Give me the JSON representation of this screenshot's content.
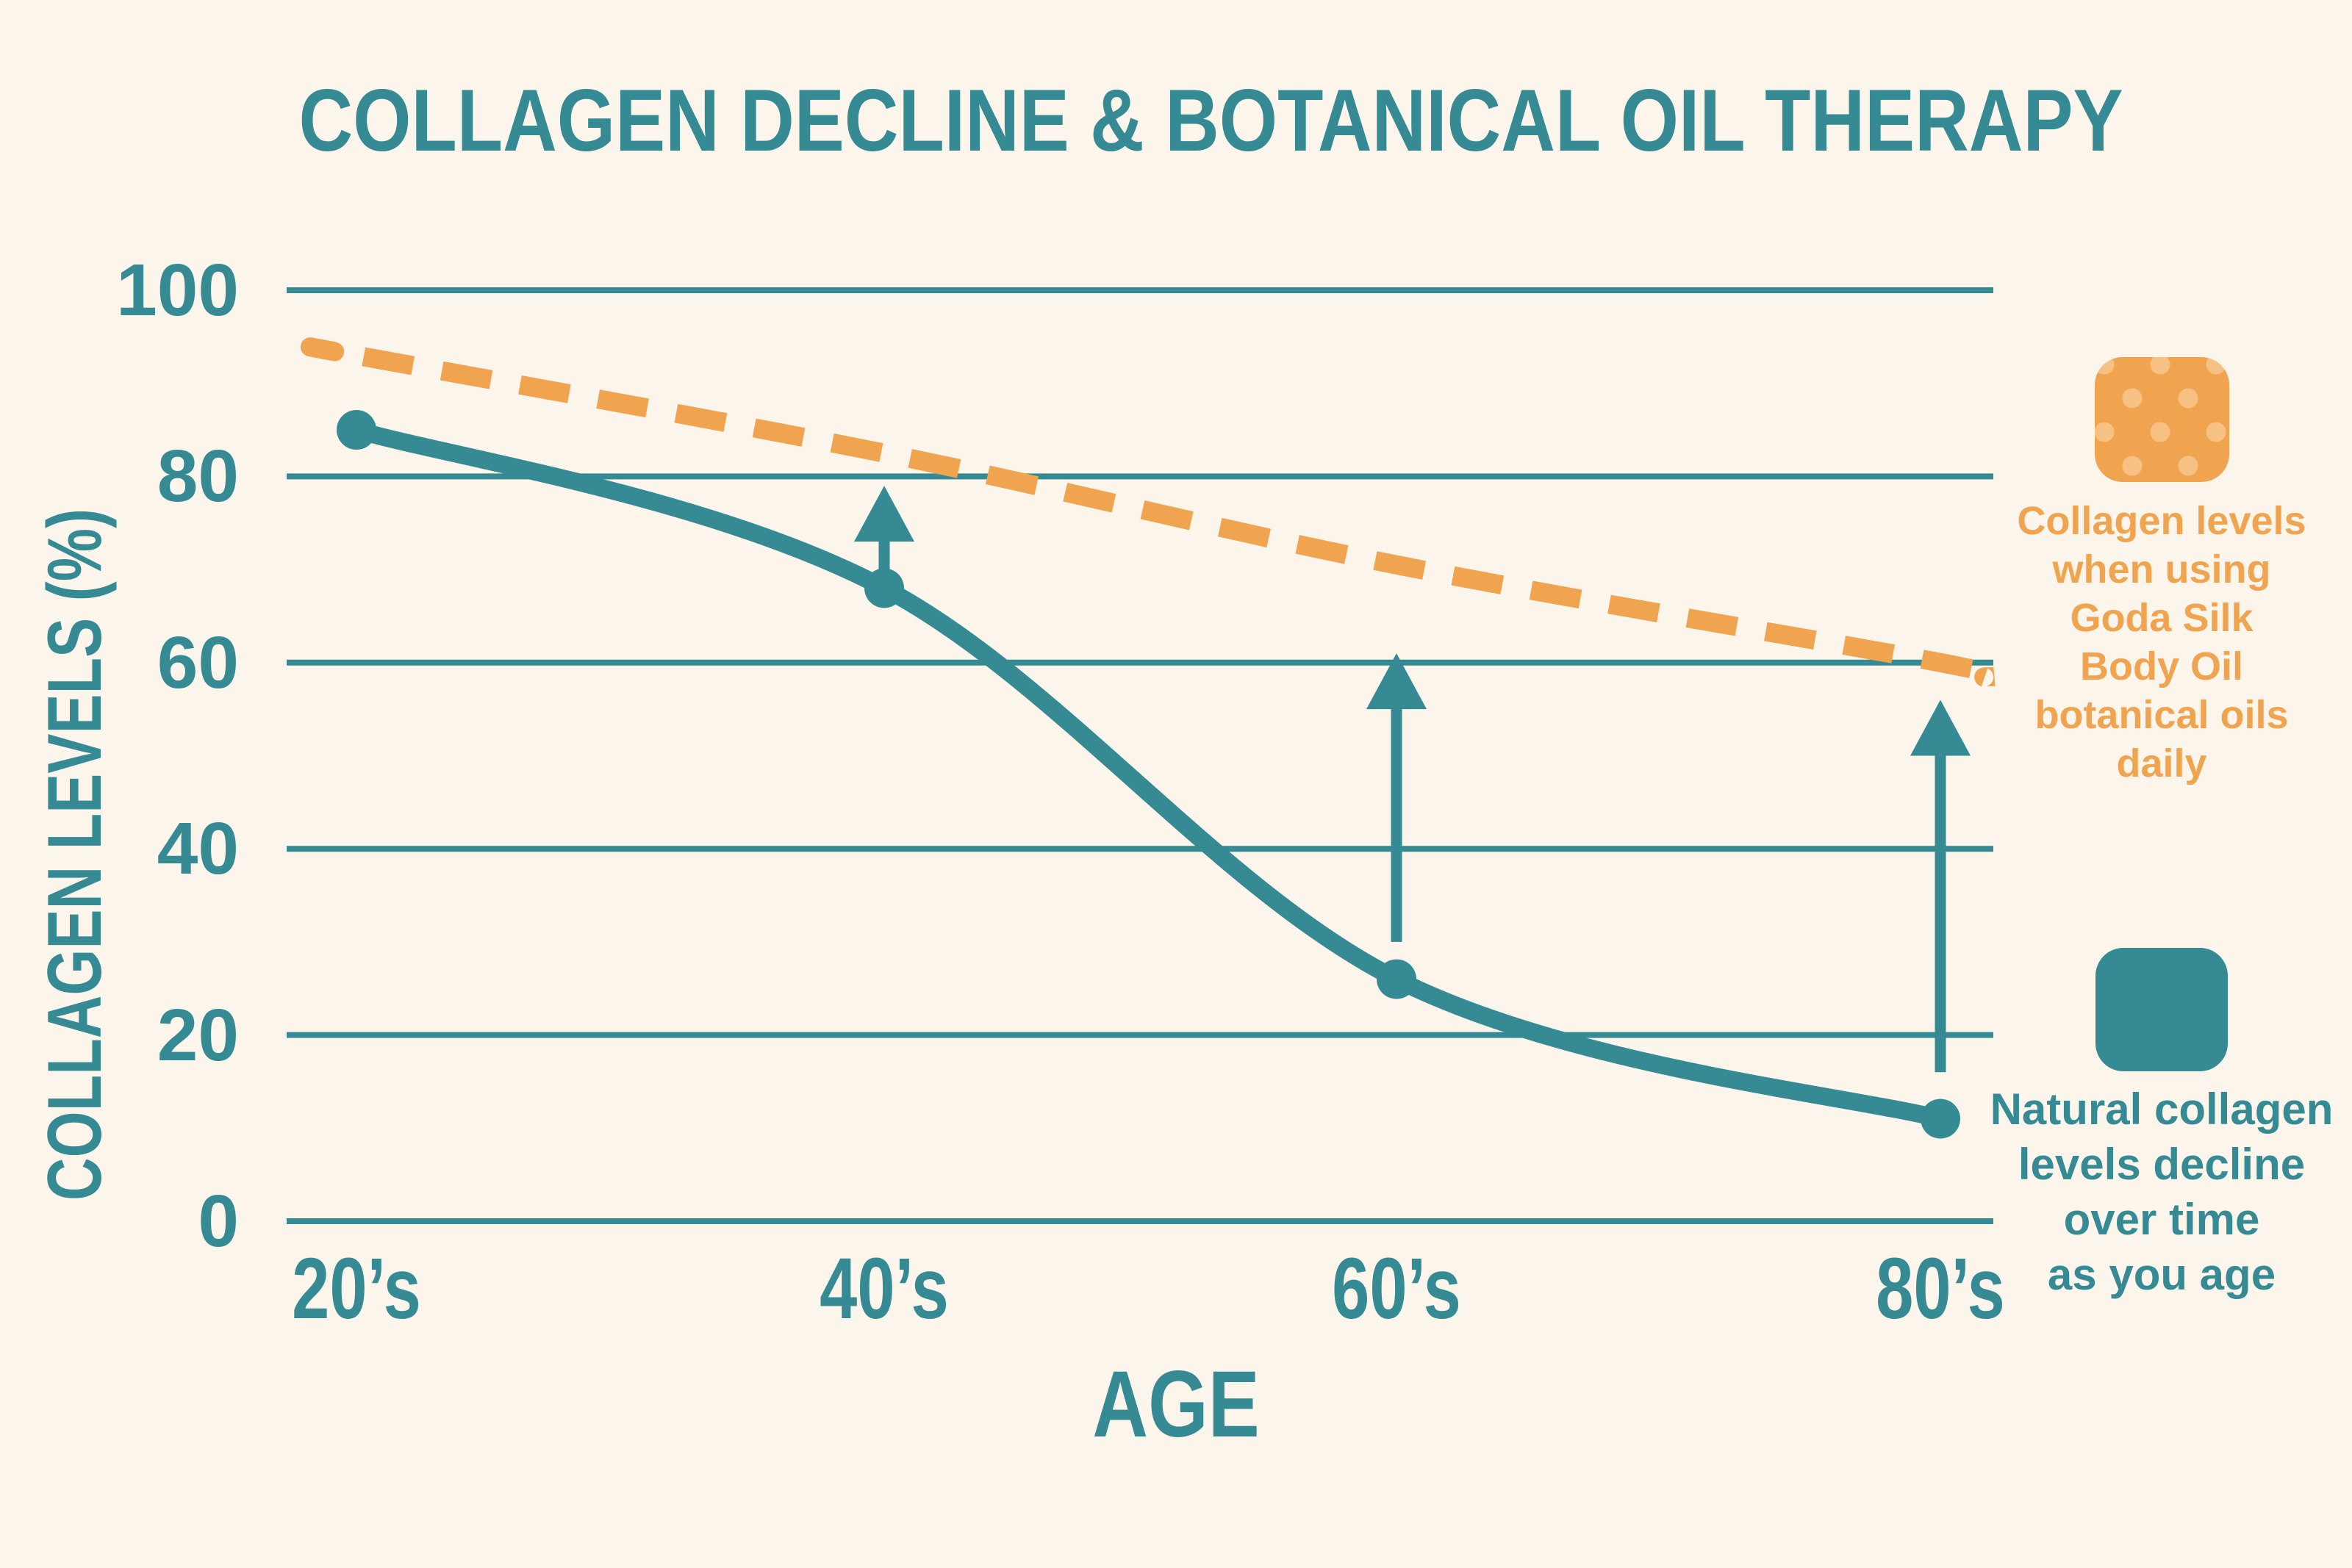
{
  "title": "COLLAGEN DECLINE & BOTANICAL OIL THERAPY",
  "colors": {
    "teal": "#358A93",
    "orange": "#F1A44F",
    "orange_dot": "#F6C183",
    "background": "#FBF5EB"
  },
  "axes": {
    "x_label": "AGE",
    "y_label": "COLLAGEN LEVELS (%)",
    "x_tick_labels": [
      "20’s",
      "40’s",
      "60’s",
      "80’s"
    ],
    "y_tick_labels": [
      "100",
      "80",
      "60",
      "40",
      "20",
      "0"
    ]
  },
  "chart_data": {
    "type": "line",
    "title": "COLLAGEN DECLINE & BOTANICAL OIL THERAPY",
    "xlabel": "AGE",
    "ylabel": "COLLAGEN LEVELS (%)",
    "categories": [
      "20’s",
      "40’s",
      "60’s",
      "80’s"
    ],
    "y_ticks": [
      100,
      80,
      60,
      40,
      20,
      0
    ],
    "ylim": [
      0,
      100
    ],
    "grid": "horizontal",
    "legend_position": "right",
    "series": [
      {
        "name": "Collagen levels when using Goda Silk Body Oil botanical oils daily",
        "style": "dashed",
        "color": "#F1A44F",
        "marker": "none",
        "values": [
          93,
          82.5,
          70.5,
          60
        ]
      },
      {
        "name": "Natural collagen levels decline over time as you age",
        "style": "solid",
        "color": "#358A93",
        "marker": "circle",
        "values": [
          85,
          68,
          26,
          11
        ]
      }
    ],
    "arrows": [
      {
        "category": "40’s",
        "from": 68,
        "to": 79
      },
      {
        "category": "60’s",
        "from": 30,
        "to": 61
      },
      {
        "category": "80’s",
        "from": 16,
        "to": 56
      }
    ]
  },
  "legend": {
    "botanical": {
      "swatch": "orange-dotted-square",
      "label": "Collagen levels\nwhen using\nGoda Silk\nBody Oil\nbotanical oils\ndaily"
    },
    "natural": {
      "swatch": "teal-square",
      "label": "Natural collagen\nlevels decline\nover time\nas you age"
    }
  }
}
